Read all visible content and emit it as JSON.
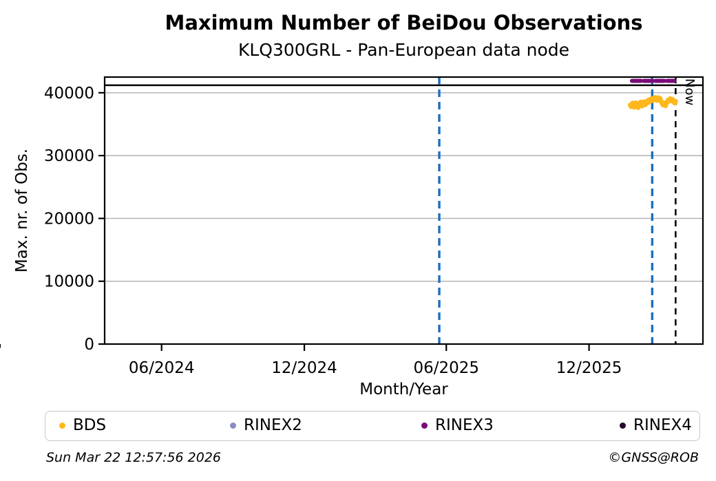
{
  "title": "Maximum Number of BeiDou Observations",
  "subtitle": "KLQ300GRL - Pan-European data node",
  "footer": {
    "timestamp": "Sun Mar 22 12:57:56 2026",
    "copyright": "©GNSS@ROB"
  },
  "chart_data": {
    "type": "scatter",
    "title": "Maximum Number of BeiDou Observations",
    "subtitle": "KLQ300GRL - Pan-European data node",
    "xlabel": "Month/Year",
    "ylabel": "Max. nr. of Obs.",
    "xlim": [
      "2024-03-20",
      "2026-04-26"
    ],
    "ylim": [
      0,
      42500
    ],
    "grid": "horizontal-only",
    "grid_color": "#b0b0b0",
    "yticks": [
      0,
      10000,
      20000,
      30000,
      40000
    ],
    "xticks": [
      {
        "date": "2024-06-01",
        "label": "06/2024"
      },
      {
        "date": "2024-12-01",
        "label": "12/2024"
      },
      {
        "date": "2025-06-01",
        "label": "06/2025"
      },
      {
        "date": "2025-12-01",
        "label": "12/2025"
      }
    ],
    "minor_xticks": "monthly",
    "max_line": {
      "value": 41200,
      "color": "#000000"
    },
    "event_lines": [
      {
        "date": "2025-05-23",
        "color": "#1b6fbe",
        "style": "dashed"
      },
      {
        "date": "2026-02-20",
        "color": "#1b6fbe",
        "style": "dashed"
      }
    ],
    "now_line": {
      "date": "2026-03-22",
      "label": "Now",
      "color": "#000000",
      "style": "dashed"
    },
    "legend_position": "bottom",
    "series": [
      {
        "name": "BDS",
        "color": "#ffb81c",
        "marker": "dot",
        "start": "2026-01-23",
        "interval_days": 1,
        "values": [
          38050,
          37800,
          38200,
          38350,
          37950,
          37700,
          38100,
          38400,
          38150,
          37850,
          37650,
          38000,
          38300,
          38500,
          38200,
          37900,
          38250,
          38550,
          38350,
          38100,
          38450,
          38650,
          38400,
          38700,
          38900,
          38600,
          38850,
          39050,
          38750,
          38950,
          39150,
          38900,
          39250,
          39100,
          38800,
          39000,
          39200,
          38950,
          39100,
          38700,
          38500,
          38250,
          38050,
          38350,
          38150,
          37950,
          38300,
          38550,
          38800,
          38650,
          38900,
          39050,
          38850,
          38700,
          38950,
          38800,
          38500,
          38350,
          38600
        ]
      },
      {
        "name": "RINEX2",
        "color": "#8d8bc4",
        "marker": "dot",
        "values": []
      },
      {
        "name": "RINEX3",
        "color": "#7a0b7a",
        "marker": "dot",
        "segment": {
          "start": "2026-01-25",
          "end": "2026-03-20",
          "value": 41900
        }
      },
      {
        "name": "RINEX4",
        "color": "#26082e",
        "marker": "dot",
        "values": []
      }
    ]
  }
}
